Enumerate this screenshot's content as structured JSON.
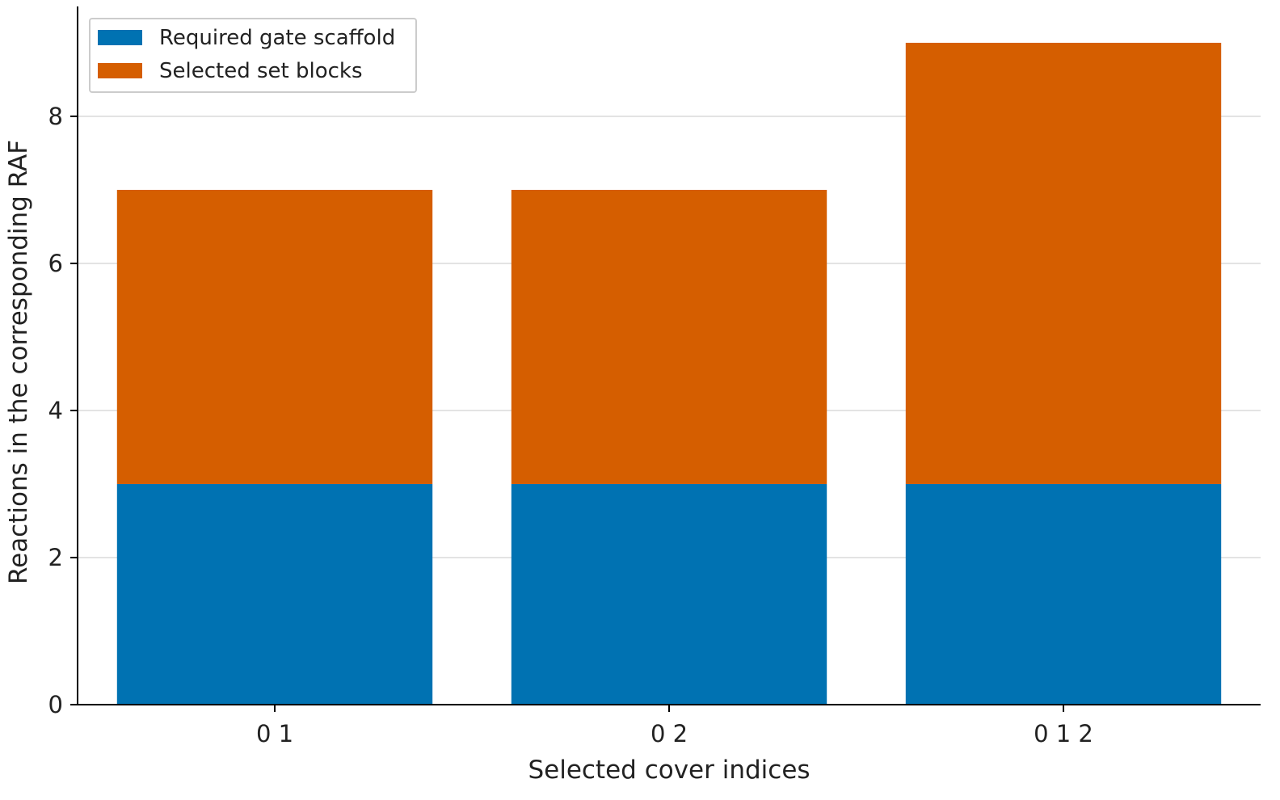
{
  "chart_data": {
    "type": "bar",
    "stacked": true,
    "title": "",
    "xlabel": "Selected cover indices",
    "ylabel": "Reactions in the corresponding RAF",
    "categories": [
      "0 1",
      "0 2",
      "0 1 2"
    ],
    "series": [
      {
        "name": "Required gate scaffold",
        "values": [
          3,
          3,
          3
        ],
        "color": "#0072b2"
      },
      {
        "name": "Selected set blocks",
        "values": [
          4,
          4,
          6
        ],
        "color": "#d55e00"
      }
    ],
    "ylim": [
      0,
      9.45
    ],
    "yticks": [
      0,
      2,
      4,
      6,
      8
    ],
    "grid": "horizontal",
    "legend_position": "top-left"
  }
}
